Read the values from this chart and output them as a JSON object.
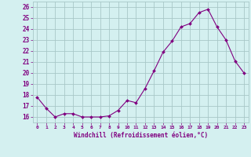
{
  "x": [
    0,
    1,
    2,
    3,
    4,
    5,
    6,
    7,
    8,
    9,
    10,
    11,
    12,
    13,
    14,
    15,
    16,
    17,
    18,
    19,
    20,
    21,
    22,
    23
  ],
  "y": [
    17.8,
    16.8,
    16.0,
    16.3,
    16.3,
    16.0,
    16.0,
    16.0,
    16.1,
    16.6,
    17.5,
    17.3,
    18.6,
    20.2,
    21.9,
    22.9,
    24.2,
    24.5,
    25.5,
    25.8,
    24.2,
    23.0,
    21.1,
    20.0
  ],
  "ylabel_ticks": [
    16,
    17,
    18,
    19,
    20,
    21,
    22,
    23,
    24,
    25,
    26
  ],
  "xlabel": "Windchill (Refroidissement éolien,°C)",
  "line_color": "#800080",
  "marker_color": "#800080",
  "bg_color": "#d4f0f0",
  "grid_color": "#a8c8c8",
  "tick_label_color": "#800080",
  "axis_label_color": "#800080",
  "xlim": [
    -0.5,
    23.5
  ],
  "ylim": [
    15.5,
    26.5
  ],
  "xticks": [
    0,
    1,
    2,
    3,
    4,
    5,
    6,
    7,
    8,
    9,
    10,
    11,
    12,
    13,
    14,
    15,
    16,
    17,
    18,
    19,
    20,
    21,
    22,
    23
  ]
}
